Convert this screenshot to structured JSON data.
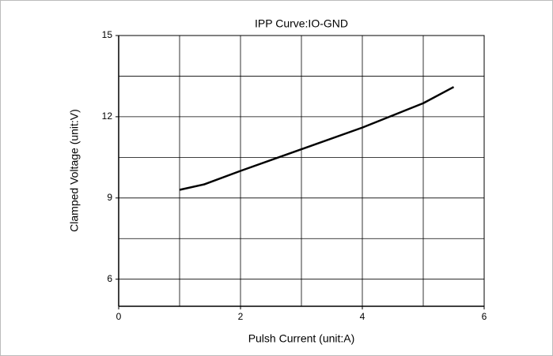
{
  "chart_data": {
    "type": "line",
    "title": "IPP Curve:IO-GND",
    "x_label": "Pulsh Current (unit:A)",
    "y_label": "Clamped Voltage (unit:V)",
    "series": [
      {
        "name": "IO-GND",
        "color": "#000000",
        "x": [
          1,
          1.4,
          2,
          3,
          4,
          5,
          5.5
        ],
        "values": [
          9.3,
          9.5,
          10.0,
          10.8,
          11.6,
          12.5,
          13.1
        ]
      }
    ],
    "xlim": [
      0,
      6
    ],
    "xticks": [
      0,
      2,
      4,
      6
    ],
    "ylim": [
      5,
      15
    ],
    "yticks": [
      6,
      9,
      12,
      15
    ],
    "xgrid": [
      1,
      2,
      3,
      4,
      5
    ],
    "ygrid": [
      6,
      7.5,
      9,
      10.5,
      12,
      13.5
    ],
    "grid": true
  }
}
